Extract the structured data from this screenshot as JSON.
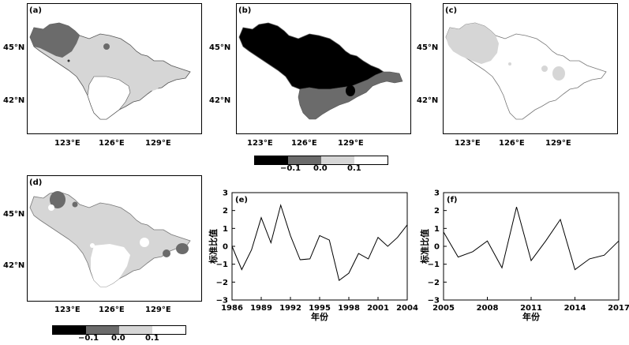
{
  "map_panels": [
    {
      "label": "(a)",
      "lat_labels": [
        "45°N",
        "42°N"
      ],
      "lon_labels": [
        "123°E",
        "126°E",
        "129°E"
      ]
    },
    {
      "label": "(b)",
      "lat_labels": [
        "45°N",
        "42°N"
      ],
      "lon_labels": [
        "123°E",
        "126°E",
        "129°E"
      ]
    },
    {
      "label": "(c)",
      "lat_labels": [
        "45°N",
        "42°N"
      ],
      "lon_labels": [
        "123°E",
        "126°E",
        "129°E"
      ]
    },
    {
      "label": "(d)",
      "lat_labels": [
        "45°N",
        "42°N"
      ],
      "lon_labels": [
        "123°E",
        "126°E",
        "129°E"
      ]
    }
  ],
  "legend": {
    "tick_labels": [
      "−0.1",
      "0.0",
      "0.1"
    ],
    "colors": [
      "#000000",
      "#6b6b6b",
      "#d6d6d6",
      "#ffffff"
    ]
  },
  "chart_data": [
    {
      "type": "line",
      "label": "(e)",
      "xlabel": "年份",
      "ylabel": "标准比值",
      "x": [
        1986,
        1987,
        1988,
        1989,
        1990,
        1991,
        1992,
        1993,
        1994,
        1995,
        1996,
        1997,
        1998,
        1999,
        2000,
        2001,
        2002,
        2003,
        2004
      ],
      "y": [
        0.0,
        -1.3,
        -0.2,
        1.6,
        0.2,
        2.3,
        0.6,
        -0.75,
        -0.7,
        0.6,
        0.35,
        -1.9,
        -1.5,
        -0.4,
        -0.7,
        0.5,
        0.0,
        0.5,
        1.2
      ],
      "xticks": [
        "1986",
        "1989",
        "1992",
        "1995",
        "1998",
        "2001",
        "2004"
      ],
      "yticks": [
        "3",
        "2",
        "1",
        "0",
        "−1",
        "−2",
        "−3"
      ],
      "xlim": [
        1986,
        2004
      ],
      "ylim": [
        -3,
        3
      ]
    },
    {
      "type": "line",
      "label": "(f)",
      "xlabel": "年份",
      "ylabel": "标准比值",
      "x": [
        2005,
        2006,
        2007,
        2008,
        2009,
        2010,
        2011,
        2012,
        2013,
        2014,
        2015,
        2016,
        2017
      ],
      "y": [
        0.8,
        -0.6,
        -0.3,
        0.3,
        -1.2,
        2.2,
        -0.8,
        0.3,
        1.5,
        -1.3,
        -0.7,
        -0.5,
        0.3
      ],
      "xticks": [
        "2005",
        "2008",
        "2011",
        "2014",
        "2017"
      ],
      "yticks": [
        "3",
        "2",
        "1",
        "0",
        "−1",
        "−2",
        "−3"
      ],
      "xlim": [
        2005,
        2017
      ],
      "ylim": [
        -3,
        3
      ]
    }
  ]
}
